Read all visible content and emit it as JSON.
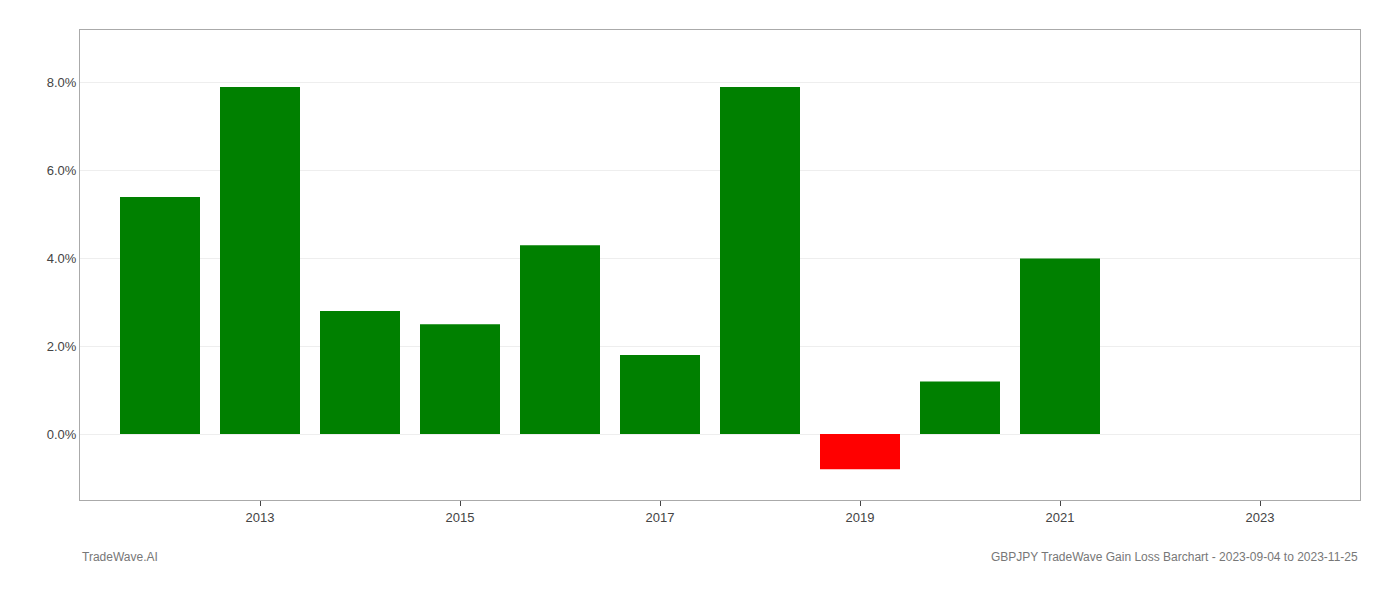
{
  "chart_data": {
    "type": "bar",
    "x": [
      2012,
      2013,
      2014,
      2015,
      2016,
      2017,
      2018,
      2019,
      2020,
      2021,
      2022
    ],
    "values": [
      0.054,
      0.079,
      0.028,
      0.025,
      0.043,
      0.018,
      0.079,
      -0.008,
      0.012,
      0.04,
      0.0
    ],
    "colors": [
      "#008000",
      "#008000",
      "#008000",
      "#008000",
      "#008000",
      "#008000",
      "#008000",
      "#ff0000",
      "#008000",
      "#008000",
      "#008000"
    ],
    "xlim": [
      2011.2,
      2024.0
    ],
    "xticks": [
      2013,
      2015,
      2017,
      2019,
      2021,
      2023
    ],
    "ylim": [
      -0.015,
      0.092
    ],
    "yticks": [
      {
        "value": 0.0,
        "label": "0.0%"
      },
      {
        "value": 0.02,
        "label": "2.0%"
      },
      {
        "value": 0.04,
        "label": "4.0%"
      },
      {
        "value": 0.06,
        "label": "6.0%"
      },
      {
        "value": 0.08,
        "label": "8.0%"
      }
    ],
    "grid": true,
    "annotations": [
      "TradeWave.AI",
      "GBPJPY TradeWave Gain Loss Barchart - 2023-09-04 to 2023-11-25"
    ]
  }
}
